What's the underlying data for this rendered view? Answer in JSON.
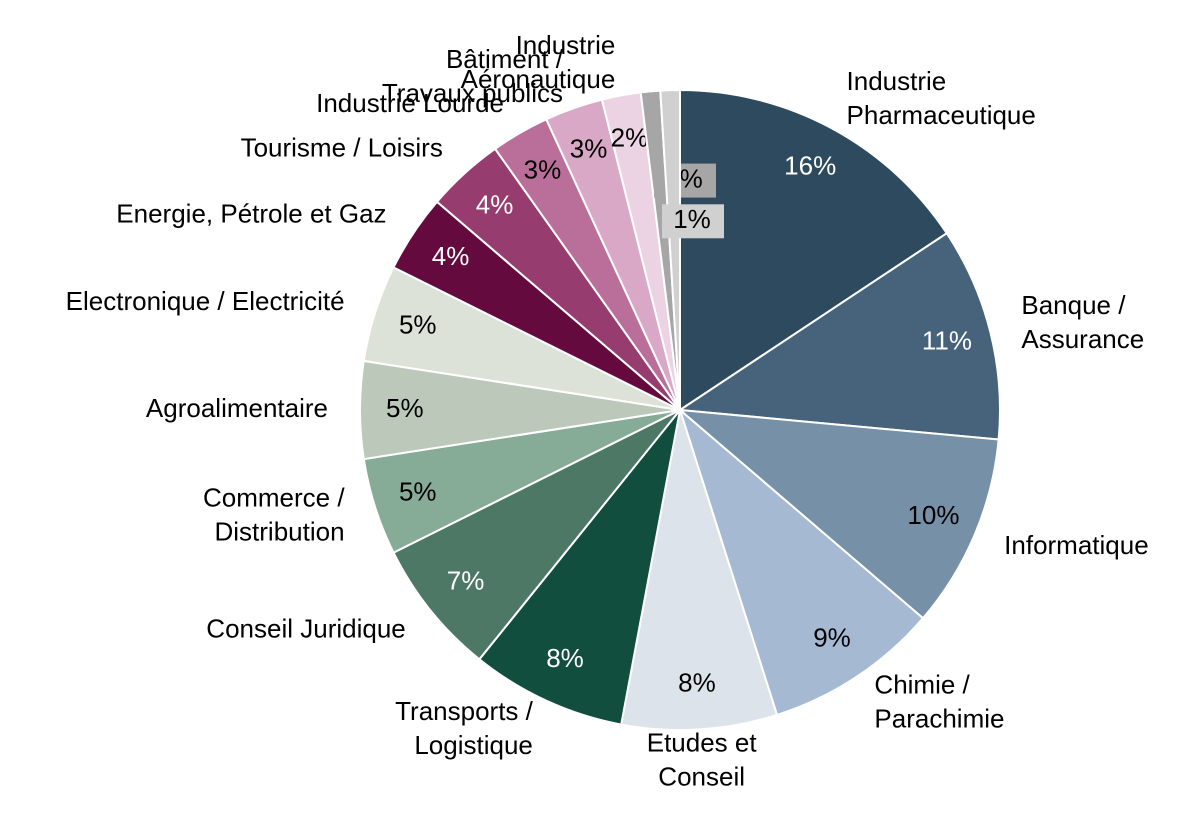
{
  "chart_data": {
    "type": "pie",
    "categories": [
      "Industrie\nPharmaceutique",
      "Banque /\nAssurance",
      "Informatique",
      "Chimie /\nParachimie",
      "Etudes et\nConseil",
      "Transports /\nLogistique",
      "Conseil Juridique",
      "Commerce /\nDistribution",
      "Agroalimentaire",
      "Electronique / Electricité",
      "Energie, Pétrole et Gaz",
      "Tourisme / Loisirs",
      "Industrie Lourde",
      "Bâtiment /\nTravaux publics",
      "Industrie\nAéronautique",
      null,
      null
    ],
    "values": [
      16,
      11,
      10,
      9,
      8,
      8,
      7,
      5,
      5,
      5,
      4,
      4,
      3,
      3,
      2,
      1,
      1
    ],
    "value_labels": [
      "16%",
      "11%",
      "10%",
      "9%",
      "8%",
      "8%",
      "7%",
      "5%",
      "5%",
      "5%",
      "4%",
      "4%",
      "3%",
      "3%",
      "2%",
      "1%",
      "1%"
    ],
    "colors": [
      "#2e4a5e",
      "#46637b",
      "#7690a8",
      "#a5bad2",
      "#dce3ea",
      "#124e3e",
      "#4e7866",
      "#86ac98",
      "#bcc9ba",
      "#dde2d8",
      "#650a3e",
      "#963c6e",
      "#ba6f9a",
      "#d9a8c6",
      "#ecd3e3",
      "#a6a6a6",
      "#d0d0d0"
    ]
  }
}
